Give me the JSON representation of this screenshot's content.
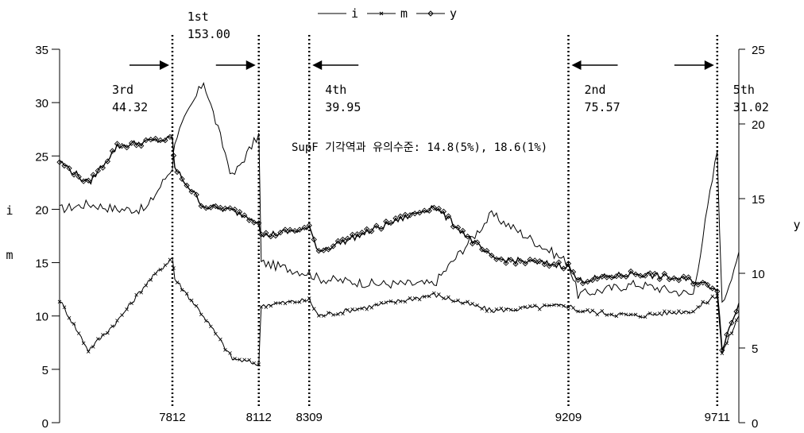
{
  "chart_data": {
    "type": "line",
    "x_unit": "yymm",
    "x": [
      "7501",
      "7601",
      "7701",
      "7801",
      "7812",
      "7901",
      "8001",
      "8101",
      "8112",
      "8201",
      "8309",
      "8401",
      "8601",
      "8801",
      "9001",
      "9209",
      "9301",
      "9501",
      "9701",
      "9711",
      "9801",
      "9808"
    ],
    "left_axis": {
      "labels": [
        "i",
        "m"
      ],
      "ticks": [
        0,
        5,
        10,
        15,
        20,
        25,
        30,
        35
      ],
      "ylim": [
        0,
        35
      ]
    },
    "right_axis": {
      "label": "y",
      "ticks": [
        0,
        5,
        10,
        15,
        20,
        25
      ],
      "ylim": [
        0,
        25
      ]
    },
    "series": [
      {
        "name": "i",
        "axis": "left",
        "marker": "none",
        "values": [
          20.0,
          20.5,
          20.0,
          20.0,
          24.0,
          26.5,
          32.0,
          23.0,
          27.0,
          15.0,
          14.0,
          13.5,
          13.0,
          13.0,
          19.5,
          15.0,
          12.0,
          13.0,
          12.0,
          25.5,
          11.0,
          16.0
        ]
      },
      {
        "name": "m",
        "axis": "left",
        "marker": "cross",
        "values": [
          11.5,
          6.8,
          9.5,
          13.0,
          15.5,
          13.5,
          10.0,
          6.0,
          5.5,
          11.0,
          11.5,
          10.0,
          11.0,
          12.0,
          10.5,
          11.0,
          10.5,
          10.0,
          10.5,
          12.0,
          6.5,
          10.0
        ]
      },
      {
        "name": "y",
        "axis": "right",
        "marker": "diamond",
        "values": [
          17.5,
          16.0,
          18.5,
          18.8,
          19.0,
          17.0,
          14.5,
          14.2,
          13.5,
          12.5,
          13.0,
          11.5,
          13.0,
          14.5,
          11.0,
          10.5,
          9.5,
          10.0,
          9.5,
          9.0,
          5.0,
          8.0
        ]
      }
    ],
    "breaks": [
      {
        "date": "7812",
        "rank": "3rd",
        "value": "44.32",
        "arrow": "right"
      },
      {
        "date": "8112",
        "rank": "1st",
        "value": "153.00",
        "arrow": "right"
      },
      {
        "date": "8309",
        "rank": "4th",
        "value": "39.95",
        "arrow": "left"
      },
      {
        "date": "9209",
        "rank": "2nd",
        "value": "75.57",
        "arrow": "left"
      },
      {
        "date": "9711",
        "rank": "5th",
        "value": "31.02",
        "arrow": "right"
      }
    ],
    "annotation": "SupF 기각역과 유의수준: 14.8(5%), 18.6(1%)",
    "legend_position": "top-center",
    "grid": false
  },
  "colors": {
    "series": "#000000",
    "break_line": "#000000",
    "background": "#ffffff"
  }
}
